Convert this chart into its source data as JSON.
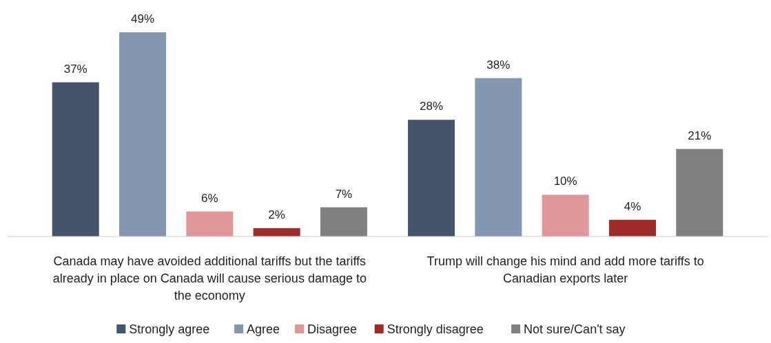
{
  "chart_data": {
    "type": "bar",
    "categories": [
      "Canada may have avoided additional tariffs but the tariffs already in place on Canada will cause serious damage to the economy",
      "Trump will change his mind and add more tariffs to Canadian exports later"
    ],
    "series": [
      {
        "name": "Strongly agree",
        "color": "#44546a",
        "values": [
          37,
          28
        ],
        "value_labels": [
          "37%",
          "28%"
        ]
      },
      {
        "name": "Agree",
        "color": "#8497b0",
        "values": [
          49,
          38
        ],
        "value_labels": [
          "49%",
          "38%"
        ]
      },
      {
        "name": "Disagree",
        "color": "#df9797",
        "values": [
          6,
          10
        ],
        "value_labels": [
          "6%",
          "10%"
        ]
      },
      {
        "name": "Strongly disagree",
        "color": "#9e2a2a",
        "values": [
          2,
          4
        ],
        "value_labels": [
          "2%",
          "4%"
        ]
      },
      {
        "name": "Not sure/Can't say",
        "color": "#808080",
        "values": [
          7,
          21
        ],
        "value_labels": [
          "7%",
          "21%"
        ]
      }
    ],
    "legend": "bottom"
  }
}
